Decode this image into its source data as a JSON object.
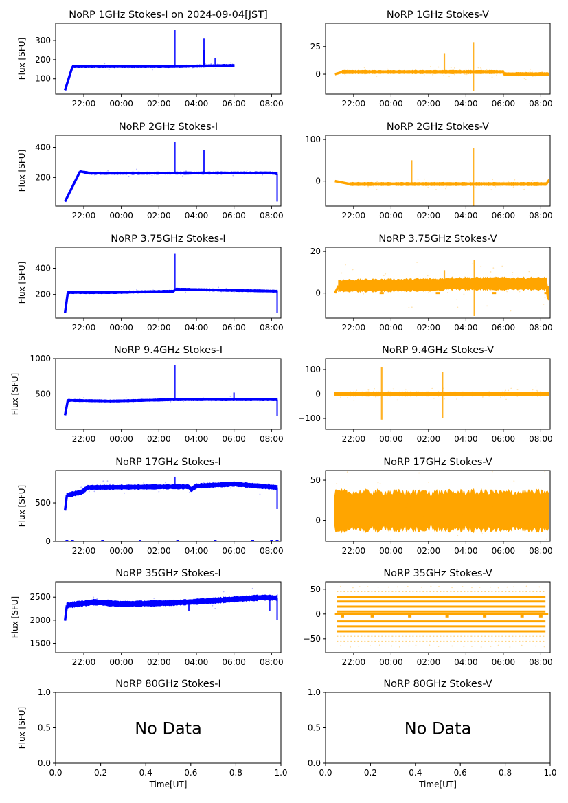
{
  "figure_title": "NoRP 1GHz Stokes-I on 2024-09-04[JST]",
  "colors": {
    "stokes_i": "#0000ff",
    "stokes_v": "#ffa500",
    "axes": "#000000"
  },
  "time_axis": {
    "label": "Time[UT]",
    "range_hours": [
      20.5,
      32.5
    ],
    "ticks": [
      "22:00",
      "00:00",
      "02:00",
      "04:00",
      "06:00",
      "08:00"
    ],
    "tick_hours": [
      22,
      24,
      26,
      28,
      30,
      32
    ]
  },
  "chart_data": [
    {
      "type": "scatter",
      "panel": "1GHz-I",
      "title": "NoRP 1GHz Stokes-I on 2024-09-04[JST]",
      "ylabel": "Flux [SFU]",
      "ylim": [
        20,
        390
      ],
      "yticks": [
        100,
        200,
        300
      ],
      "series": [
        {
          "name": "Stokes-I",
          "start_h": 21.0,
          "end_h": 30.0,
          "start_value": 40,
          "rise_end_h": 21.4,
          "baseline": [
            [
              21.4,
              165
            ],
            [
              26.8,
              165
            ],
            [
              30.0,
              170
            ]
          ],
          "band": 5,
          "peaks": [
            [
              26.85,
              355
            ],
            [
              28.4,
              250
            ],
            [
              28.4,
              310
            ],
            [
              29.0,
              210
            ]
          ]
        }
      ]
    },
    {
      "type": "scatter",
      "panel": "1GHz-V",
      "title": "NoRP 1GHz Stokes-V",
      "ylabel": "",
      "ylim": [
        -18,
        46
      ],
      "yticks": [
        0,
        25
      ],
      "series": [
        {
          "name": "Stokes-V",
          "start_h": 21.0,
          "end_h": 32.4,
          "start_value": 0,
          "rise_end_h": 21.4,
          "baseline": [
            [
              21.4,
              2
            ],
            [
              30.0,
              2
            ],
            [
              30.0,
              0
            ],
            [
              32.4,
              0
            ]
          ],
          "band": 1.2,
          "peaks": [
            [
              26.85,
              19
            ],
            [
              28.4,
              29
            ],
            [
              28.4,
              -15
            ]
          ]
        }
      ]
    },
    {
      "type": "scatter",
      "panel": "2GHz-I",
      "title": "NoRP 2GHz Stokes-I",
      "ylabel": "Flux [SFU]",
      "ylim": [
        10,
        480
      ],
      "yticks": [
        200,
        400
      ],
      "series": [
        {
          "name": "Stokes-I",
          "start_h": 21.0,
          "end_h": 32.3,
          "start_value": 40,
          "rise_end_h": 21.8,
          "baseline": [
            [
              21.8,
              240
            ],
            [
              22.3,
              228
            ],
            [
              32.0,
              230
            ],
            [
              32.3,
              225
            ]
          ],
          "band": 6,
          "peaks": [
            [
              26.85,
              435
            ],
            [
              28.4,
              380
            ],
            [
              32.3,
              40
            ]
          ]
        }
      ]
    },
    {
      "type": "scatter",
      "panel": "2GHz-V",
      "title": "NoRP 2GHz Stokes-V",
      "ylabel": "",
      "ylim": [
        -60,
        110
      ],
      "yticks": [
        0,
        100
      ],
      "series": [
        {
          "name": "Stokes-V",
          "start_h": 21.0,
          "end_h": 32.4,
          "start_value": 0,
          "rise_end_h": 21.8,
          "baseline": [
            [
              21.8,
              -7
            ],
            [
              32.3,
              -7
            ],
            [
              32.4,
              0
            ]
          ],
          "band": 3,
          "peaks": [
            [
              28.4,
              80
            ],
            [
              28.4,
              -60
            ],
            [
              25.1,
              50
            ]
          ]
        }
      ]
    },
    {
      "type": "scatter",
      "panel": "3.75GHz-I",
      "title": "NoRP 3.75GHz Stokes-I",
      "ylabel": "Flux [SFU]",
      "ylim": [
        20,
        560
      ],
      "yticks": [
        200,
        400
      ],
      "series": [
        {
          "name": "Stokes-I",
          "start_h": 21.0,
          "end_h": 32.3,
          "start_value": 60,
          "rise_end_h": 21.15,
          "baseline": [
            [
              21.15,
              215
            ],
            [
              23.5,
              215
            ],
            [
              26.8,
              225
            ],
            [
              26.9,
              240
            ],
            [
              32.3,
              225
            ]
          ],
          "band": 7,
          "peaks": [
            [
              26.85,
              510
            ],
            [
              32.3,
              60
            ]
          ]
        }
      ]
    },
    {
      "type": "scatter",
      "panel": "3.75GHz-V",
      "title": "NoRP 3.75GHz Stokes-V",
      "ylabel": "",
      "ylim": [
        -12,
        22
      ],
      "yticks": [
        0,
        20
      ],
      "series": [
        {
          "name": "Stokes-V",
          "start_h": 21.0,
          "end_h": 32.4,
          "start_value": 0,
          "rise_end_h": 21.2,
          "baseline": [
            [
              21.2,
              3.5
            ],
            [
              26.8,
              4
            ],
            [
              26.9,
              4.5
            ],
            [
              32.3,
              4.5
            ],
            [
              32.35,
              0
            ],
            [
              32.4,
              0
            ]
          ],
          "band": 2.6,
          "peaks": [
            [
              26.85,
              11
            ],
            [
              28.45,
              16
            ],
            [
              28.45,
              -11
            ]
          ]
        }
      ]
    },
    {
      "type": "scatter",
      "panel": "9.4GHz-I",
      "title": "NoRP 9.4GHz Stokes-I",
      "ylabel": "Flux [SFU]",
      "ylim": [
        0,
        1000
      ],
      "yticks": [
        500,
        1000
      ],
      "series": [
        {
          "name": "Stokes-I",
          "start_h": 21.0,
          "end_h": 32.3,
          "start_value": 200,
          "rise_end_h": 21.15,
          "baseline": [
            [
              21.15,
              410
            ],
            [
              23.5,
              400
            ],
            [
              26.8,
              420
            ],
            [
              32.3,
              420
            ]
          ],
          "band": 12,
          "peaks": [
            [
              26.85,
              910
            ],
            [
              30.0,
              520
            ],
            [
              32.3,
              190
            ]
          ]
        }
      ]
    },
    {
      "type": "scatter",
      "panel": "9.4GHz-V",
      "title": "NoRP 9.4GHz Stokes-V",
      "ylabel": "",
      "ylim": [
        -145,
        145
      ],
      "yticks": [
        -100,
        0,
        100
      ],
      "series": [
        {
          "name": "Stokes-V",
          "start_h": 21.0,
          "end_h": 32.4,
          "start_value": 0,
          "rise_end_h": 21.0,
          "baseline": [
            [
              21.0,
              0
            ],
            [
              32.4,
              0
            ]
          ],
          "band": 7,
          "peaks": [
            [
              23.5,
              110
            ],
            [
              23.5,
              -105
            ],
            [
              26.75,
              90
            ],
            [
              26.75,
              -100
            ]
          ]
        }
      ]
    },
    {
      "type": "scatter",
      "panel": "17GHz-I",
      "title": "NoRP 17GHz Stokes-I",
      "ylabel": "Flux [SFU]",
      "ylim": [
        0,
        920
      ],
      "yticks": [
        0,
        500
      ],
      "series": [
        {
          "name": "Stokes-I",
          "start_h": 21.0,
          "end_h": 32.3,
          "start_value": 400,
          "rise_end_h": 21.1,
          "baseline": [
            [
              21.1,
              600
            ],
            [
              21.9,
              640
            ],
            [
              22.2,
              700
            ],
            [
              26.8,
              710
            ],
            [
              27.6,
              710
            ],
            [
              27.7,
              670
            ],
            [
              28.0,
              720
            ],
            [
              30.0,
              745
            ],
            [
              32.3,
              700
            ]
          ],
          "band": 25,
          "peaks": [
            [
              26.85,
              840
            ],
            [
              32.3,
              420
            ]
          ]
        }
      ]
    },
    {
      "type": "scatter",
      "panel": "17GHz-V",
      "title": "NoRP 17GHz Stokes-V",
      "ylabel": "",
      "ylim": [
        -26,
        62
      ],
      "yticks": [
        0,
        50
      ],
      "series": [
        {
          "name": "Stokes-V",
          "start_h": 21.0,
          "end_h": 32.4,
          "start_value": 0,
          "rise_end_h": 21.0,
          "baseline": [
            [
              21.0,
              12
            ],
            [
              32.3,
              12
            ]
          ],
          "band": 22,
          "peaks": []
        }
      ]
    },
    {
      "type": "scatter",
      "panel": "35GHz-I",
      "title": "NoRP 35GHz Stokes-I",
      "ylabel": "Flux [SFU]",
      "ylim": [
        1300,
        2830
      ],
      "yticks": [
        1500,
        2000,
        2500
      ],
      "series": [
        {
          "name": "Stokes-I",
          "start_h": 21.0,
          "end_h": 32.3,
          "start_value": 1990,
          "rise_end_h": 21.1,
          "baseline": [
            [
              21.1,
              2320
            ],
            [
              22.5,
              2390
            ],
            [
              24.0,
              2350
            ],
            [
              26.5,
              2370
            ],
            [
              28.0,
              2400
            ],
            [
              31.5,
              2490
            ],
            [
              32.3,
              2480
            ]
          ],
          "band": 50,
          "peaks": [
            [
              27.6,
              2200
            ],
            [
              31.9,
              2200
            ],
            [
              32.3,
              2000
            ]
          ]
        }
      ]
    },
    {
      "type": "scatter",
      "panel": "35GHz-V",
      "title": "NoRP 35GHz Stokes-V",
      "ylabel": "",
      "ylim": [
        -78,
        65
      ],
      "yticks": [
        -50,
        0,
        50
      ],
      "series": [
        {
          "name": "Stokes-V",
          "start_h": 21.0,
          "end_h": 32.4,
          "quantized_levels": [
            -55,
            -45,
            -35,
            -25,
            -15,
            5,
            15,
            25,
            35,
            45
          ]
        }
      ]
    },
    {
      "type": "scatter",
      "panel": "80GHz-I",
      "title": "NoRP 80GHz Stokes-I",
      "ylabel": "Flux [SFU]",
      "xlabel": "Time[UT]",
      "xlim": [
        0.0,
        1.0
      ],
      "ylim": [
        0.0,
        1.0
      ],
      "xticks": [
        "0.0",
        "0.2",
        "0.4",
        "0.6",
        "0.8",
        "1.0"
      ],
      "yticks": [
        "0.0",
        "0.5",
        "1.0"
      ],
      "annotation": "No Data",
      "series": []
    },
    {
      "type": "scatter",
      "panel": "80GHz-V",
      "title": "NoRP 80GHz Stokes-V",
      "ylabel": "",
      "xlabel": "Time[UT]",
      "xlim": [
        0.0,
        1.0
      ],
      "ylim": [
        0.0,
        1.0
      ],
      "xticks": [
        "0.0",
        "0.2",
        "0.4",
        "0.6",
        "0.8",
        "1.0"
      ],
      "yticks": [
        "0.0",
        "0.5",
        "1.0"
      ],
      "annotation": "No Data",
      "series": []
    }
  ]
}
